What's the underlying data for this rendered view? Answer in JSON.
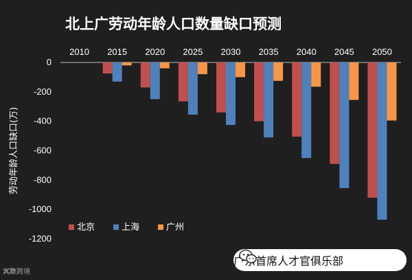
{
  "chart_data": {
    "type": "bar",
    "title": "北上广劳动年龄人口数量缺口预测",
    "xlabel": "",
    "ylabel": "劳动年龄人口缺口(万)",
    "ylim": [
      -1200,
      0
    ],
    "yticks": [
      0,
      -200,
      -400,
      -600,
      -800,
      -1000,
      -1200
    ],
    "categories": [
      "2010",
      "2015",
      "2020",
      "2025",
      "2030",
      "2035",
      "2040",
      "2045",
      "2050"
    ],
    "series": [
      {
        "name": "北京",
        "color": "#c0504d",
        "values": [
          0,
          -75,
          -170,
          -265,
          -340,
          -400,
          -505,
          -690,
          -920
        ]
      },
      {
        "name": "上海",
        "color": "#4f81bd",
        "values": [
          0,
          -130,
          -250,
          -355,
          -425,
          -510,
          -650,
          -855,
          -1070
        ]
      },
      {
        "name": "广州",
        "color": "#f79646",
        "values": [
          0,
          -20,
          -40,
          -80,
          -100,
          -125,
          -165,
          -255,
          -395
        ]
      }
    ],
    "legend_position": "bottom-left",
    "grid": false
  },
  "footer": {
    "account_name": "广东首席人才官俱乐部",
    "watermark_text": "大数跨境",
    "watermark_logo": "1C0"
  },
  "colors": {
    "background": "#1f1f1f",
    "text": "#ffffff",
    "axis": "#bfbfbf",
    "wechat_green": "#5b5b5b"
  }
}
